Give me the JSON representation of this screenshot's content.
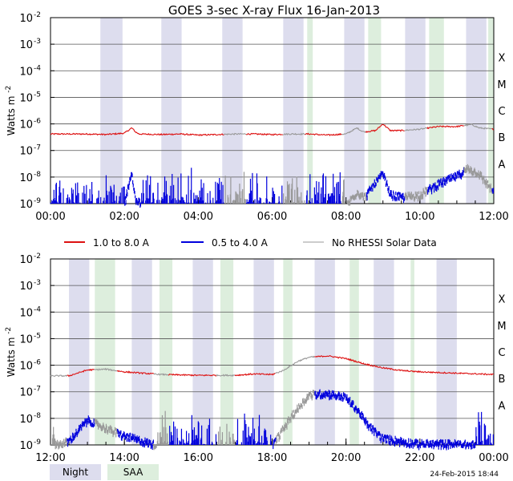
{
  "title": "GOES 3-sec X-ray Flux   16-Jan-2013",
  "footer_date": "24-Feb-2015 18:44",
  "colors": {
    "long": "#dd1111",
    "short": "#0000dd",
    "no_rhessi": "#999999",
    "night": "#ddddee",
    "saa": "#ddeedd",
    "grid": "#555555"
  },
  "legend": {
    "long": "1.0 to 8.0 A",
    "short": "0.5 to 4.0 A",
    "no_rhessi": "No RHESSI Solar Data"
  },
  "key": {
    "night": "Night",
    "saa": "SAA"
  },
  "chart_data": [
    {
      "type": "line",
      "ylabel": "Watts m",
      "ylabel_sup": "-2",
      "yscale": "log",
      "ylim": [
        1e-09,
        0.01
      ],
      "y_ticks": [
        {
          "base": "10",
          "exp": "-9"
        },
        {
          "base": "10",
          "exp": "-8"
        },
        {
          "base": "10",
          "exp": "-7"
        },
        {
          "base": "10",
          "exp": "-6"
        },
        {
          "base": "10",
          "exp": "-5"
        },
        {
          "base": "10",
          "exp": "-4"
        },
        {
          "base": "10",
          "exp": "-3"
        },
        {
          "base": "10",
          "exp": "-2"
        }
      ],
      "flare_classes": [
        {
          "label": "A",
          "exp": -8
        },
        {
          "label": "B",
          "exp": -7
        },
        {
          "label": "C",
          "exp": -6
        },
        {
          "label": "M",
          "exp": -5
        },
        {
          "label": "X",
          "exp": -4
        }
      ],
      "xlim_hours": [
        0,
        12
      ],
      "x_ticks": [
        {
          "h": 0,
          "label": "00:00"
        },
        {
          "h": 2,
          "label": "02:00"
        },
        {
          "h": 4,
          "label": "04:00"
        },
        {
          "h": 6,
          "label": "06:00"
        },
        {
          "h": 8,
          "label": "08:00"
        },
        {
          "h": 10,
          "label": "10:00"
        },
        {
          "h": 12,
          "label": "12:00"
        }
      ],
      "night": [
        [
          1.35,
          1.95
        ],
        [
          3.0,
          3.55
        ],
        [
          4.65,
          5.2
        ],
        [
          6.3,
          6.85
        ],
        [
          7.95,
          8.5
        ],
        [
          9.6,
          10.15
        ],
        [
          11.25,
          11.8
        ]
      ],
      "saa": [
        [
          6.95,
          7.1
        ],
        [
          8.6,
          8.95
        ],
        [
          10.25,
          10.65
        ],
        [
          11.85,
          12.0
        ]
      ],
      "no_rhessi": [
        [
          4.7,
          5.3
        ],
        [
          6.3,
          6.9
        ],
        [
          7.9,
          8.55
        ],
        [
          9.6,
          10.2
        ],
        [
          11.2,
          11.95
        ]
      ],
      "series": [
        {
          "name": "1.0 to 8.0 A",
          "x": [
            0,
            0.5,
            1,
            1.5,
            2.0,
            2.2,
            2.3,
            2.4,
            3,
            3.5,
            4,
            4.5,
            5,
            5.5,
            6,
            6.5,
            7,
            7.5,
            8,
            8.3,
            8.4,
            8.5,
            8.8,
            9.0,
            9.2,
            9.5,
            10,
            10.5,
            11,
            11.4,
            11.6,
            12
          ],
          "log": [
            -6.38,
            -6.38,
            -6.38,
            -6.4,
            -6.35,
            -6.15,
            -6.3,
            -6.38,
            -6.4,
            -6.38,
            -6.42,
            -6.4,
            -6.38,
            -6.38,
            -6.4,
            -6.38,
            -6.38,
            -6.42,
            -6.38,
            -6.15,
            -6.25,
            -6.3,
            -6.25,
            -6.0,
            -6.25,
            -6.25,
            -6.2,
            -6.1,
            -6.1,
            -6.02,
            -6.15,
            -6.2
          ]
        },
        {
          "name": "0.5 to 4.0 A",
          "x": [
            0,
            0.5,
            1,
            2,
            2.2,
            2.3,
            2.5,
            3,
            4,
            5,
            6,
            7,
            8,
            8.3,
            8.5,
            9.0,
            9.2,
            9.5,
            10,
            10.5,
            11,
            11.3,
            11.6,
            12
          ],
          "log": [
            -9,
            -9,
            -9,
            -9,
            -7.7,
            -8.8,
            -9,
            -9,
            -9,
            -9,
            -9,
            -9,
            -9,
            -8.5,
            -8.7,
            -7.8,
            -8.6,
            -8.7,
            -8.6,
            -8.2,
            -7.9,
            -7.6,
            -7.8,
            -8.5
          ]
        }
      ]
    },
    {
      "type": "line",
      "ylabel": "Watts m",
      "ylabel_sup": "-2",
      "yscale": "log",
      "ylim": [
        1e-09,
        0.01
      ],
      "y_ticks": [
        {
          "base": "10",
          "exp": "-9"
        },
        {
          "base": "10",
          "exp": "-8"
        },
        {
          "base": "10",
          "exp": "-7"
        },
        {
          "base": "10",
          "exp": "-6"
        },
        {
          "base": "10",
          "exp": "-5"
        },
        {
          "base": "10",
          "exp": "-4"
        },
        {
          "base": "10",
          "exp": "-3"
        },
        {
          "base": "10",
          "exp": "-2"
        }
      ],
      "flare_classes": [
        {
          "label": "A",
          "exp": -8
        },
        {
          "label": "B",
          "exp": -7
        },
        {
          "label": "C",
          "exp": -6
        },
        {
          "label": "M",
          "exp": -5
        },
        {
          "label": "X",
          "exp": -4
        }
      ],
      "xlim_hours": [
        12,
        24
      ],
      "x_ticks": [
        {
          "h": 12,
          "label": "12:00"
        },
        {
          "h": 14,
          "label": "14:00"
        },
        {
          "h": 16,
          "label": "16:00"
        },
        {
          "h": 18,
          "label": "18:00"
        },
        {
          "h": 20,
          "label": "20:00"
        },
        {
          "h": 22,
          "label": "22:00"
        },
        {
          "h": 24,
          "label": "00:00"
        }
      ],
      "night": [
        [
          12.5,
          13.05
        ],
        [
          14.2,
          14.75
        ],
        [
          15.85,
          16.4
        ],
        [
          17.5,
          18.05
        ],
        [
          19.15,
          19.7
        ],
        [
          20.75,
          21.3
        ],
        [
          22.45,
          23.0
        ]
      ],
      "saa": [
        [
          13.2,
          13.75
        ],
        [
          14.95,
          15.3
        ],
        [
          16.6,
          16.95
        ],
        [
          18.3,
          18.55
        ],
        [
          20.1,
          20.35
        ],
        [
          21.75,
          21.85
        ]
      ],
      "no_rhessi": [
        [
          12.0,
          12.45
        ],
        [
          13.2,
          13.8
        ],
        [
          14.8,
          15.2
        ],
        [
          16.5,
          17.0
        ],
        [
          18.1,
          19.15
        ]
      ],
      "series": [
        {
          "name": "1.0 to 8.0 A",
          "x": [
            12,
            12.5,
            13,
            13.5,
            14,
            14.5,
            15,
            16,
            17,
            17.5,
            18,
            18.3,
            18.7,
            19.0,
            19.5,
            20.0,
            20.5,
            21.0,
            21.5,
            22,
            23,
            24
          ],
          "log": [
            -6.4,
            -6.4,
            -6.18,
            -6.15,
            -6.25,
            -6.3,
            -6.35,
            -6.38,
            -6.38,
            -6.33,
            -6.35,
            -6.2,
            -5.85,
            -5.7,
            -5.65,
            -5.75,
            -5.95,
            -6.1,
            -6.2,
            -6.25,
            -6.3,
            -6.35
          ]
        },
        {
          "name": "0.5 to 4.0 A",
          "x": [
            12,
            12.5,
            13,
            13.5,
            14,
            15,
            16,
            17,
            18,
            18.5,
            19.0,
            19.5,
            20.0,
            20.3,
            20.6,
            21,
            22,
            23,
            24
          ],
          "log": [
            -9,
            -8.8,
            -8.0,
            -8.3,
            -8.6,
            -9,
            -9,
            -9,
            -9,
            -7.9,
            -7.05,
            -7.0,
            -7.15,
            -7.6,
            -8.2,
            -8.7,
            -8.9,
            -8.9,
            -9
          ]
        }
      ]
    }
  ]
}
